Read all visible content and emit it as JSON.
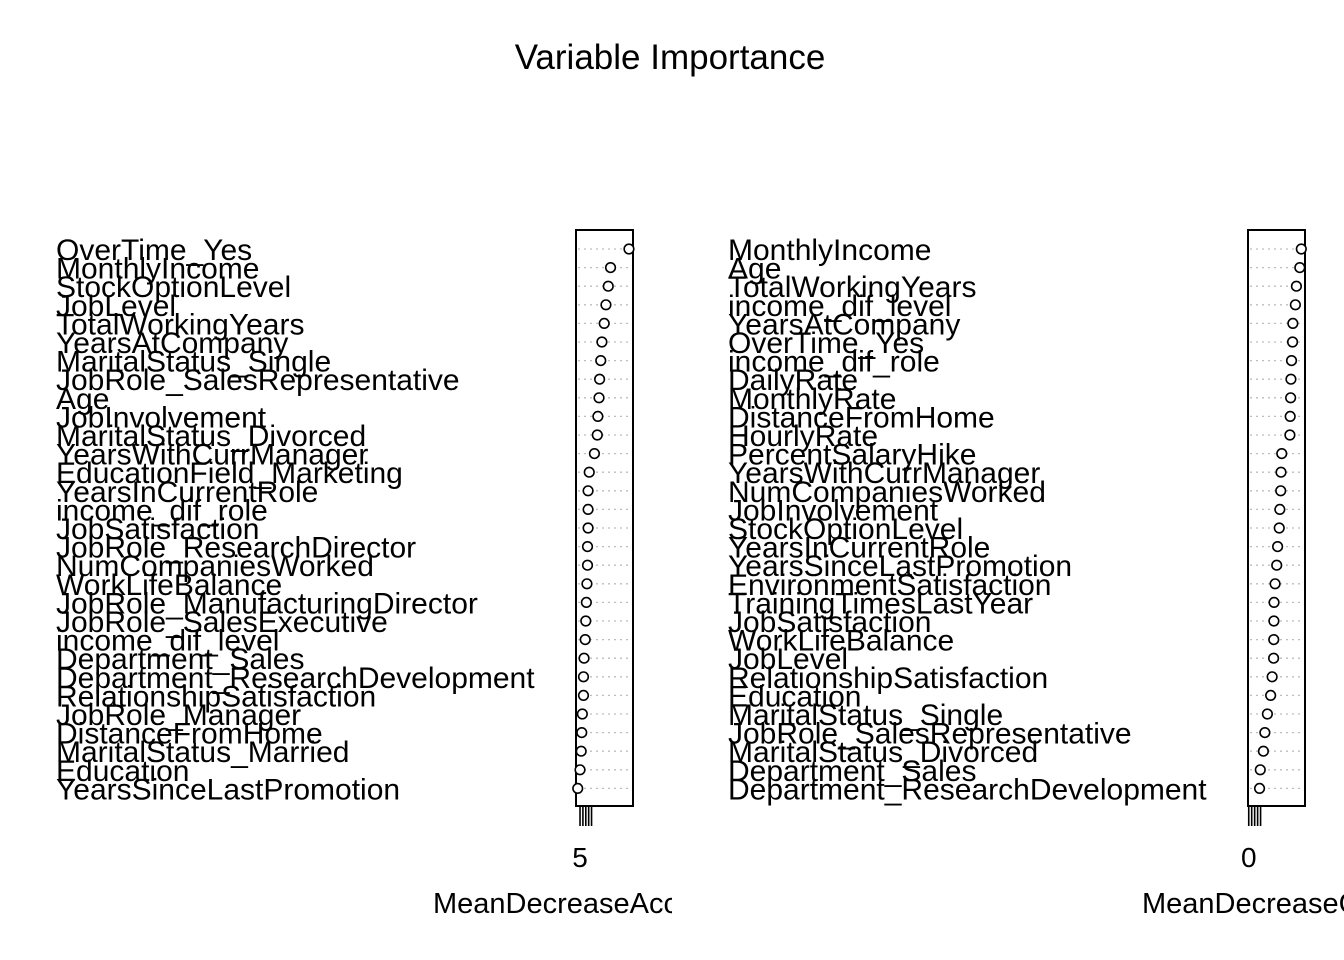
{
  "chart_data": [
    {
      "type": "scatter",
      "title": "Variable Importance",
      "xlabel": "MeanDecreaseAccuracy",
      "xticks": [
        5
      ],
      "grid": true,
      "legend": "none",
      "categories": [
        "OverTime_Yes",
        "MonthlyIncome",
        "StockOptionLevel",
        "JobLevel",
        "TotalWorkingYears",
        "YearsAtCompany",
        "MaritalStatus_Single",
        "JobRole_SalesRepresentative",
        "Age",
        "JobInvolvement",
        "MaritalStatus_Divorced",
        "YearsWithCurrManager",
        "EducationField_Marketing",
        "YearsInCurrentRole",
        "income_dif_role",
        "JobSatisfaction",
        "JobRole_ResearchDirector",
        "NumCompaniesWorked",
        "WorkLifeBalance",
        "JobRole_ManufacturingDirector",
        "JobRole_SalesExecutive",
        "income_dif_level",
        "Department_Sales",
        "Department_ResearchDevelopment",
        "RelationshipSatisfaction",
        "JobRole_Manager",
        "DistanceFromHome",
        "MaritalStatus_Married",
        "Education",
        "YearsSinceLastPromotion"
      ],
      "values": [
        13.5,
        10.3,
        9.9,
        9.5,
        9.2,
        8.8,
        8.6,
        8.4,
        8.3,
        8.1,
        8.0,
        7.5,
        6.6,
        6.4,
        6.4,
        6.4,
        6.3,
        6.3,
        6.2,
        6.1,
        6.0,
        5.9,
        5.7,
        5.6,
        5.6,
        5.4,
        5.3,
        5.2,
        5.0,
        4.6
      ],
      "xlim": [
        4.3,
        14.2
      ]
    },
    {
      "type": "scatter",
      "xlabel": "MeanDecreaseGini",
      "xticks": [
        0
      ],
      "grid": true,
      "legend": "none",
      "categories": [
        "MonthlyIncome",
        "Age",
        "TotalWorkingYears",
        "income_dif_level",
        "YearsAtCompany",
        "OverTime_Yes",
        "income_dif_role",
        "DailyRate",
        "MonthlyRate",
        "DistanceFromHome",
        "HourlyRate",
        "PercentSalaryHike",
        "YearsWithCurrManager",
        "NumCompaniesWorked",
        "JobInvolvement",
        "StockOptionLevel",
        "YearsInCurrentRole",
        "YearsSinceLastPromotion",
        "EnvironmentSatisfaction",
        "TrainingTimesLastYear",
        "JobSatisfaction",
        "WorkLifeBalance",
        "JobLevel",
        "RelationshipSatisfaction",
        "Education",
        "MaritalStatus_Single",
        "JobRole_SalesRepresentative",
        "MaritalStatus_Divorced",
        "Department_Sales",
        "Department_ResearchDevelopment"
      ],
      "values": [
        35.5,
        34.5,
        32.2,
        31.5,
        29.8,
        29.6,
        28.9,
        28.5,
        28.3,
        28.0,
        27.8,
        22.3,
        21.8,
        21.6,
        21.0,
        20.6,
        19.5,
        18.9,
        17.8,
        17.1,
        17.0,
        16.9,
        16.8,
        15.8,
        14.8,
        12.6,
        10.9,
        9.9,
        7.8,
        7.3
      ],
      "xlim": [
        -0.5,
        38
      ]
    }
  ]
}
